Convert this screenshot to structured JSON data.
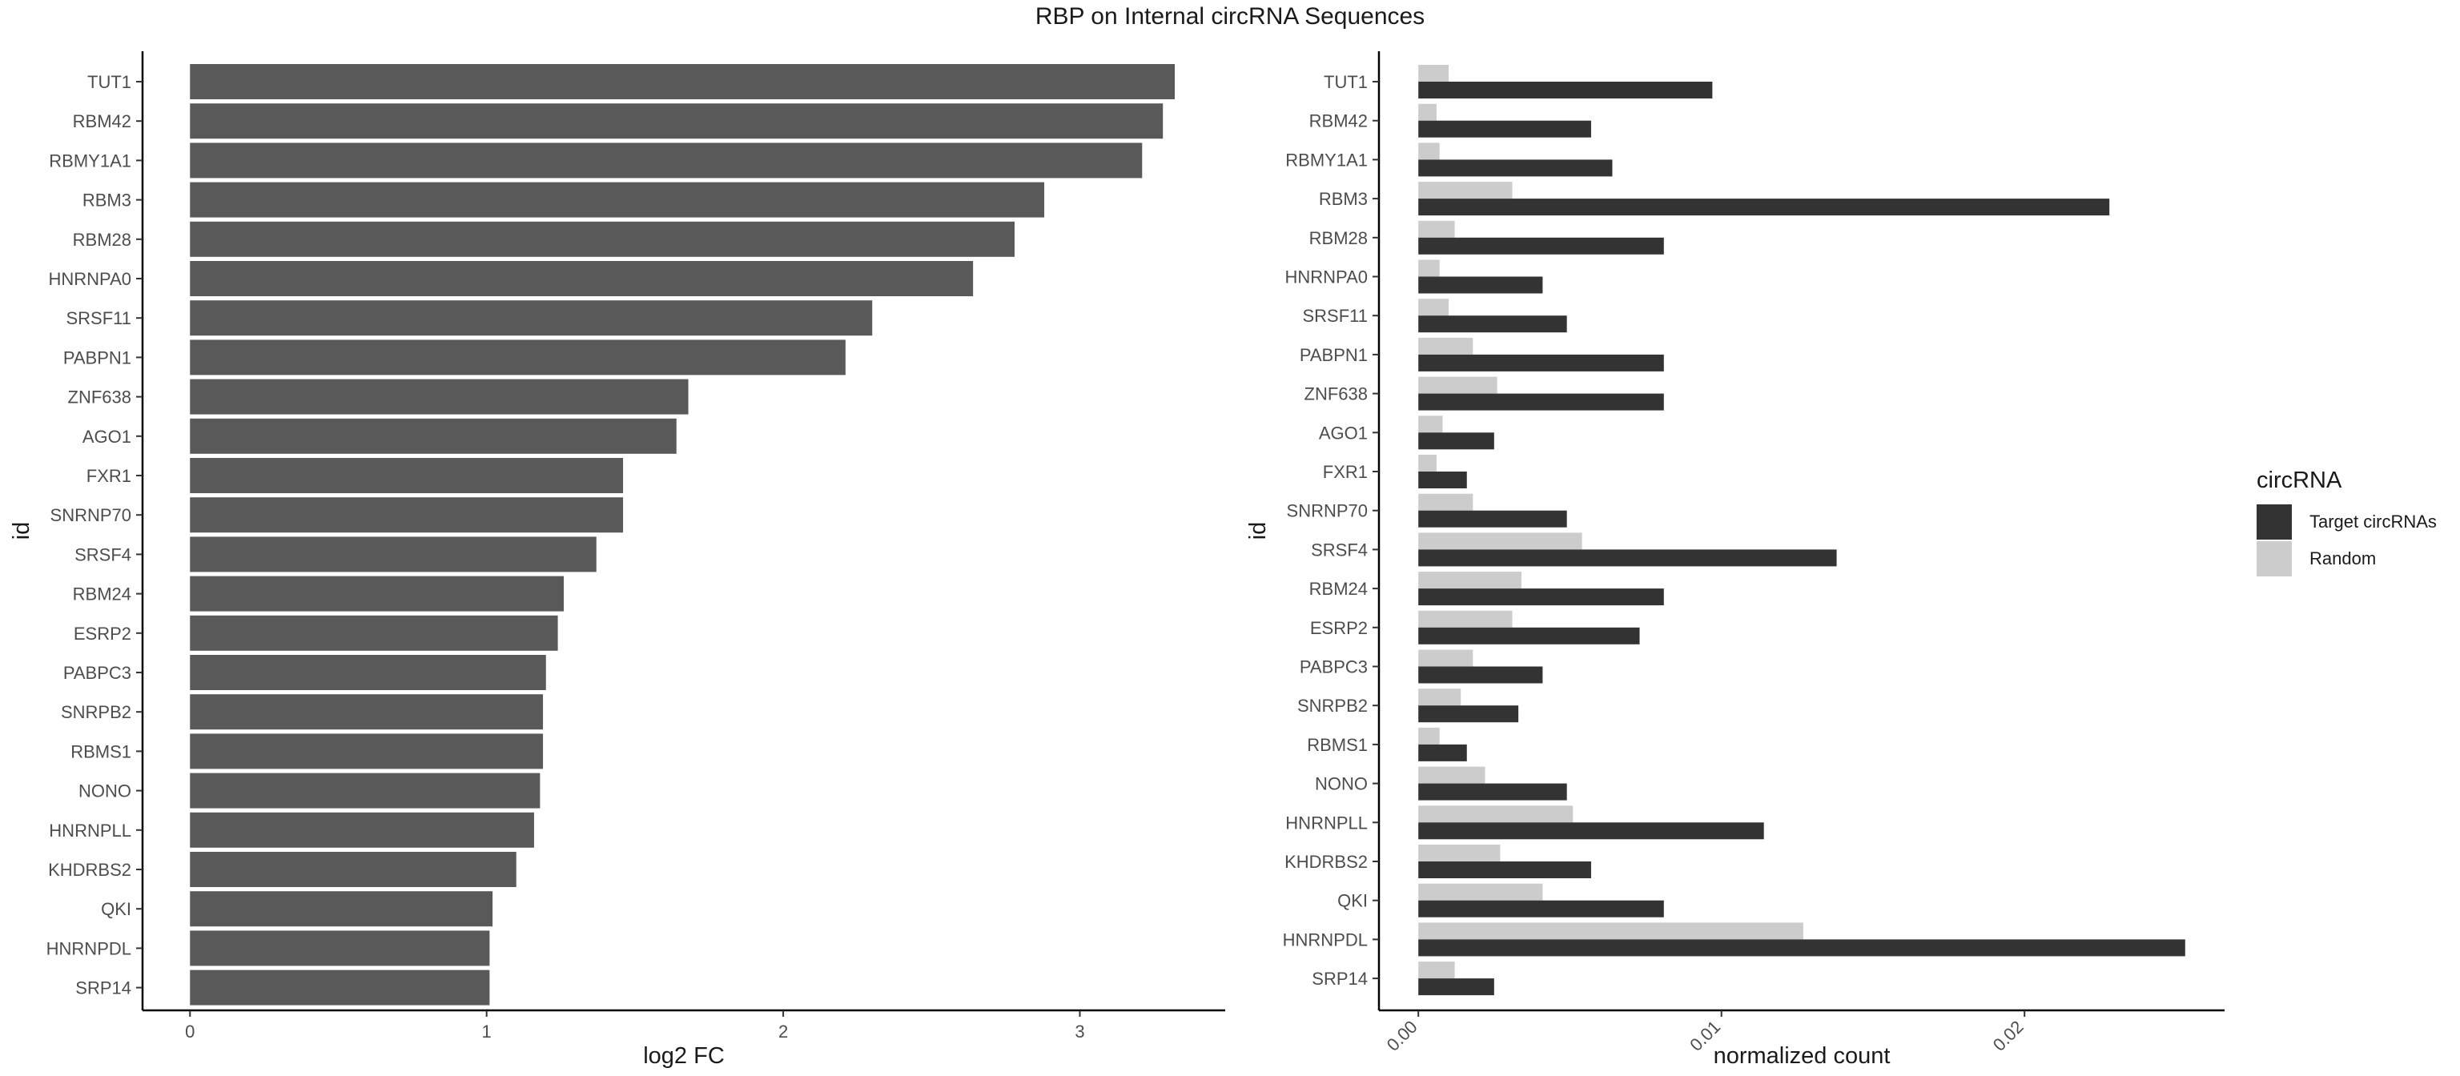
{
  "title": "RBP on Internal circRNA Sequences",
  "chart_data": [
    {
      "type": "bar",
      "orientation": "horizontal",
      "categories": [
        "TUT1",
        "RBM42",
        "RBMY1A1",
        "RBM3",
        "RBM28",
        "HNRNPA0",
        "SRSF11",
        "PABPN1",
        "ZNF638",
        "AGO1",
        "FXR1",
        "SNRNP70",
        "SRSF4",
        "RBM24",
        "ESRP2",
        "PABPC3",
        "SNRPB2",
        "RBMS1",
        "NONO",
        "HNRNPLL",
        "KHDRBS2",
        "QKI",
        "HNRNPDL",
        "SRP14"
      ],
      "values": [
        3.32,
        3.28,
        3.21,
        2.88,
        2.78,
        2.64,
        2.3,
        2.21,
        1.68,
        1.64,
        1.46,
        1.46,
        1.37,
        1.26,
        1.24,
        1.2,
        1.19,
        1.19,
        1.18,
        1.16,
        1.1,
        1.02,
        1.01,
        1.01
      ],
      "xlabel": "log2 FC",
      "ylabel": "id",
      "xlim": [
        -0.16,
        3.49
      ],
      "xticks": [
        "0",
        "1",
        "2",
        "3"
      ],
      "grid": false,
      "bar_color": "#595959"
    },
    {
      "type": "bar",
      "orientation": "horizontal",
      "categories": [
        "TUT1",
        "RBM42",
        "RBMY1A1",
        "RBM3",
        "RBM28",
        "HNRNPA0",
        "SRSF11",
        "PABPN1",
        "ZNF638",
        "AGO1",
        "FXR1",
        "SNRNP70",
        "SRSF4",
        "RBM24",
        "ESRP2",
        "PABPC3",
        "SNRPB2",
        "RBMS1",
        "NONO",
        "HNRNPLL",
        "KHDRBS2",
        "QKI",
        "HNRNPDL",
        "SRP14"
      ],
      "series": [
        {
          "name": "Target circRNAs",
          "color": "#333333",
          "values": [
            0.0097,
            0.0057,
            0.0064,
            0.0228,
            0.0081,
            0.0041,
            0.0049,
            0.0081,
            0.0081,
            0.0025,
            0.0016,
            0.0049,
            0.0138,
            0.0081,
            0.0073,
            0.0041,
            0.0033,
            0.0016,
            0.0049,
            0.0114,
            0.0057,
            0.0081,
            0.0253,
            0.0025
          ]
        },
        {
          "name": "Random",
          "color": "#cccccc",
          "values": [
            0.001,
            0.0006,
            0.0007,
            0.0031,
            0.0012,
            0.0007,
            0.001,
            0.0018,
            0.0026,
            0.0008,
            0.0006,
            0.0018,
            0.0054,
            0.0034,
            0.0031,
            0.0018,
            0.0014,
            0.0007,
            0.0022,
            0.0051,
            0.0027,
            0.0041,
            0.0127,
            0.0012
          ]
        }
      ],
      "xlabel": "normalized count",
      "ylabel": "id",
      "xlim": [
        -0.0013,
        0.0266
      ],
      "xticks": [
        "0.00",
        "0.01",
        "0.02"
      ],
      "grid": false,
      "legend": {
        "title": "circRNA",
        "placement": "right"
      }
    }
  ]
}
